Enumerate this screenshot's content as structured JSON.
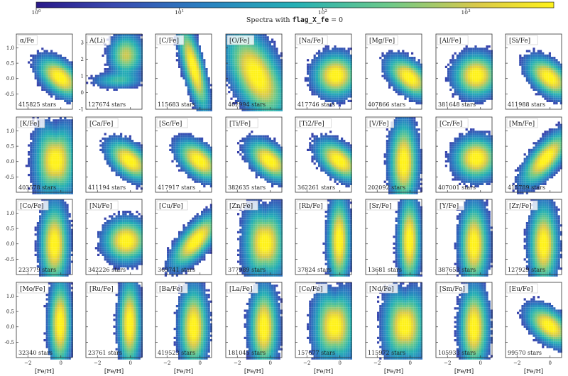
{
  "colorbar": {
    "label_prefix": "Spectra with ",
    "label_code": "flag_X_fe",
    "label_suffix": " = 0",
    "scale": "log",
    "range": [
      1,
      1000
    ],
    "ticks": [
      {
        "value": 1,
        "base": "10",
        "exp": "0"
      },
      {
        "value": 10,
        "base": "10",
        "exp": "1"
      },
      {
        "value": 100,
        "base": "10",
        "exp": "2"
      },
      {
        "value": 1000,
        "base": "10",
        "exp": "3"
      }
    ],
    "colormap": "plasma"
  },
  "chart_data": {
    "type": "heatmap",
    "layout": "small-multiples",
    "x_label": "[Fe/H]",
    "x_ticks": [
      -2,
      0
    ],
    "xlim": [
      -2.7,
      0.7
    ],
    "ylim": [
      -1.0,
      1.45
    ],
    "y_ticks": [
      -0.5,
      0.0,
      0.5,
      1.0
    ],
    "colormap": "plasma",
    "grid": false,
    "panels": [
      {
        "label": "α/Fe",
        "count": "415825 stars",
        "shape": "alpha"
      },
      {
        "label": "A(Li)",
        "count": "127674 stars",
        "shape": "li",
        "ylim": [
          -1,
          3.5
        ],
        "y_ticks": [
          -1,
          0,
          1,
          2,
          3
        ]
      },
      {
        "label": "[C/Fe]",
        "count": "115683 stars",
        "shape": "diag"
      },
      {
        "label": "[O/Fe]",
        "count": "402994 stars",
        "shape": "wideslope"
      },
      {
        "label": "[Na/Fe]",
        "count": "417746 stars",
        "shape": "flat"
      },
      {
        "label": "[Mg/Fe]",
        "count": "407866 stars",
        "shape": "alpha"
      },
      {
        "label": "[Al/Fe]",
        "count": "381648 stars",
        "shape": "flat"
      },
      {
        "label": "[Si/Fe]",
        "count": "411988 stars",
        "shape": "alpha"
      },
      {
        "label": "[K/Fe]",
        "count": "403578 stars",
        "shape": "fan"
      },
      {
        "label": "[Ca/Fe]",
        "count": "411194 stars",
        "shape": "alpha"
      },
      {
        "label": "[Sc/Fe]",
        "count": "417917 stars",
        "shape": "alpha"
      },
      {
        "label": "[Ti/Fe]",
        "count": "382635 stars",
        "shape": "alpha"
      },
      {
        "label": "[Ti2/Fe]",
        "count": "362261 stars",
        "shape": "alpha"
      },
      {
        "label": "[V/Fe]",
        "count": "202092 stars",
        "shape": "tall"
      },
      {
        "label": "[Cr/Fe]",
        "count": "407001 stars",
        "shape": "flat"
      },
      {
        "label": "[Mn/Fe]",
        "count": "415789 stars",
        "shape": "rising"
      },
      {
        "label": "[Co/Fe]",
        "count": "223779 stars",
        "shape": "tall"
      },
      {
        "label": "[Ni/Fe]",
        "count": "342226 stars",
        "shape": "flat"
      },
      {
        "label": "[Cu/Fe]",
        "count": "369741 stars",
        "shape": "rising"
      },
      {
        "label": "[Zn/Fe]",
        "count": "377989 stars",
        "shape": "fan"
      },
      {
        "label": "[Rb/Fe]",
        "count": "37824 stars",
        "shape": "narrow"
      },
      {
        "label": "[Sr/Fe]",
        "count": "13681 stars",
        "shape": "narrow"
      },
      {
        "label": "[Y/Fe]",
        "count": "387653 stars",
        "shape": "tall"
      },
      {
        "label": "[Zr/Fe]",
        "count": "127929 stars",
        "shape": "tall"
      },
      {
        "label": "[Mo/Fe]",
        "count": "32340 stars",
        "shape": "narrow"
      },
      {
        "label": "[Ru/Fe]",
        "count": "23761 stars",
        "shape": "narrow"
      },
      {
        "label": "[Ba/Fe]",
        "count": "419523 stars",
        "shape": "tall"
      },
      {
        "label": "[La/Fe]",
        "count": "181045 stars",
        "shape": "tall"
      },
      {
        "label": "[Ce/Fe]",
        "count": "157677 stars",
        "shape": "fan"
      },
      {
        "label": "[Nd/Fe]",
        "count": "115972 stars",
        "shape": "fan"
      },
      {
        "label": "[Sm/Fe]",
        "count": "105933 stars",
        "shape": "tall"
      },
      {
        "label": "[Eu/Fe]",
        "count": "99570 stars",
        "shape": "alpha"
      }
    ]
  }
}
